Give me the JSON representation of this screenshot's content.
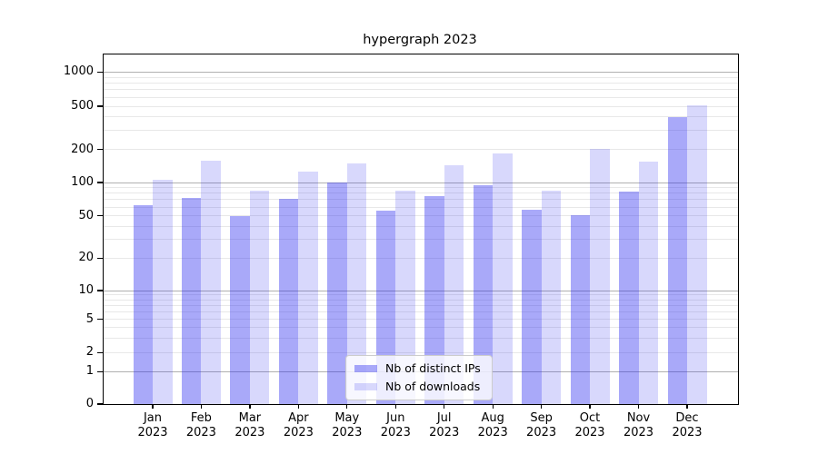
{
  "page": {
    "background": "#ffffff"
  },
  "chart_data": {
    "type": "bar",
    "title": "hypergraph 2023",
    "categories": [
      "Jan 2023",
      "Feb 2023",
      "Mar 2023",
      "Apr 2023",
      "May 2023",
      "Jun 2023",
      "Jul 2023",
      "Aug 2023",
      "Sep 2023",
      "Oct 2023",
      "Nov 2023",
      "Dec 2023"
    ],
    "x_tick_line1": [
      "Jan",
      "Feb",
      "Mar",
      "Apr",
      "May",
      "Jun",
      "Jul",
      "Aug",
      "Sep",
      "Oct",
      "Nov",
      "Dec"
    ],
    "x_tick_line2": "2023",
    "series": [
      {
        "name": "Nb of distinct IPs",
        "key": "distinct-ips",
        "color": "rgba(40,40,240,0.40)",
        "values": [
          62,
          72,
          50,
          71,
          100,
          56,
          76,
          95,
          57,
          51,
          83,
          395
        ]
      },
      {
        "name": "Nb of downloads",
        "key": "downloads",
        "color": "rgba(40,40,240,0.18)",
        "values": [
          106,
          157,
          84,
          126,
          149,
          84,
          143,
          186,
          85,
          202,
          156,
          510
        ]
      }
    ],
    "y_axis": {
      "scale": "symlog",
      "tick_labels": [
        "0",
        "1",
        "2",
        "5",
        "10",
        "20",
        "50",
        "100",
        "200",
        "500",
        "1000"
      ],
      "tick_values": [
        0,
        1,
        2,
        5,
        10,
        20,
        50,
        100,
        200,
        500,
        1000
      ],
      "major_grid_values": [
        1,
        10,
        100,
        1000
      ],
      "grid": true
    },
    "legend": {
      "position": "lower-center"
    },
    "colors": {
      "bar_distinct_ips_on_white": "#aaaaf9",
      "bar_downloads_on_white": "#d9d9fb",
      "major_grid": "#b0b0b0",
      "minor_grid": "#e8e8e8",
      "axis": "#000000"
    }
  }
}
